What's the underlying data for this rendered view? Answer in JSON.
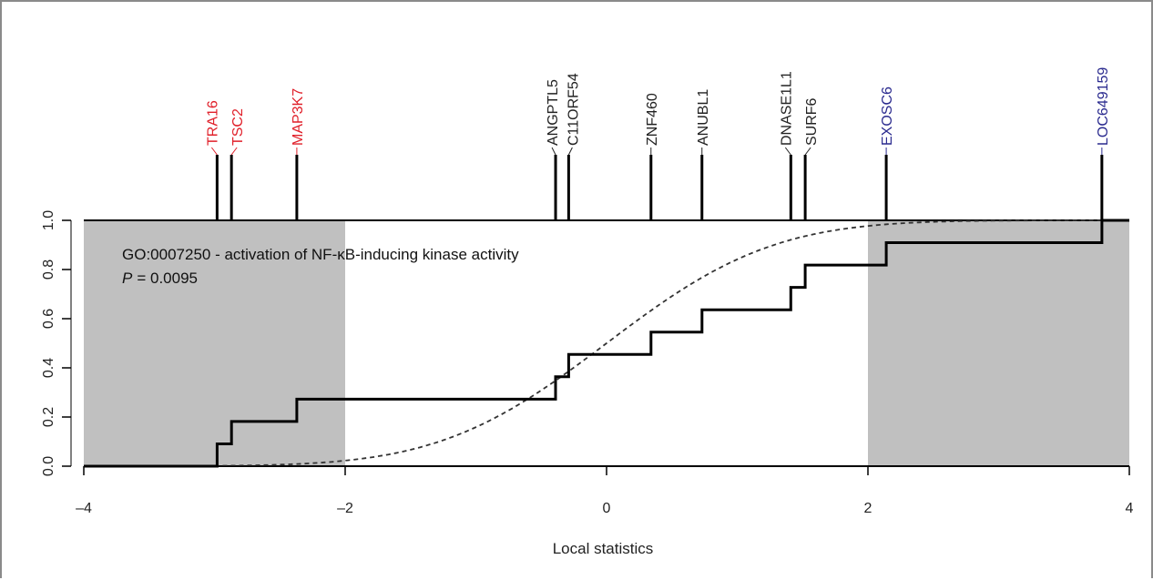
{
  "chart_data": {
    "type": "line",
    "annotation": {
      "go_line": "GO:0007250 - activation of NF-κB-inducing kinase activity",
      "p_label": "P",
      "p_value": "= 0.0095"
    },
    "xlabel": "Local statistics",
    "xlim": [
      -4,
      4
    ],
    "ylim": [
      0,
      1
    ],
    "x_ticks": [
      -4,
      -2,
      0,
      2,
      4
    ],
    "x_tick_labels": [
      "–4",
      "–2",
      "0",
      "2",
      "4"
    ],
    "y_ticks": [
      0,
      0.2,
      0.4,
      0.6,
      0.8,
      1.0
    ],
    "y_tick_labels": [
      "0.0",
      "0.2",
      "0.4",
      "0.6",
      "0.8",
      "1.0"
    ],
    "shaded_regions": [
      {
        "from": -4,
        "to": -2,
        "color": "#c0c0c0"
      },
      {
        "from": 2,
        "to": 4,
        "color": "#c0c0c0"
      }
    ],
    "genes": [
      {
        "name": "TRA16",
        "x": -2.98,
        "color": "#e0202a"
      },
      {
        "name": "TSC2",
        "x": -2.87,
        "color": "#e0202a"
      },
      {
        "name": "MAP3K7",
        "x": -2.37,
        "color": "#e0202a"
      },
      {
        "name": "ANGPTL5",
        "x": -0.39,
        "color": "#222222"
      },
      {
        "name": "C11ORF54",
        "x": -0.29,
        "color": "#222222"
      },
      {
        "name": "ZNF460",
        "x": 0.34,
        "color": "#222222"
      },
      {
        "name": "ANUBL1",
        "x": 0.73,
        "color": "#222222"
      },
      {
        "name": "DNASE1L1",
        "x": 1.41,
        "color": "#222222"
      },
      {
        "name": "SURF6",
        "x": 1.52,
        "color": "#222222"
      },
      {
        "name": "EXOSC6",
        "x": 2.14,
        "color": "#2b2b8f"
      },
      {
        "name": "LOC649159",
        "x": 3.79,
        "color": "#2b2b8f"
      }
    ],
    "empirical_cdf": {
      "style": "solid",
      "color": "#000000",
      "steps": [
        -2.98,
        -2.87,
        -2.37,
        -0.39,
        -0.29,
        0.34,
        0.73,
        1.41,
        1.52,
        2.14,
        3.79
      ],
      "values": [
        0.0909,
        0.1818,
        0.2727,
        0.3636,
        0.4545,
        0.5455,
        0.6364,
        0.7273,
        0.8182,
        0.9091,
        1.0
      ]
    },
    "reference_cdf": {
      "style": "dashed",
      "color": "#333333",
      "description": "normal CDF, mean 0, sd 1"
    }
  }
}
